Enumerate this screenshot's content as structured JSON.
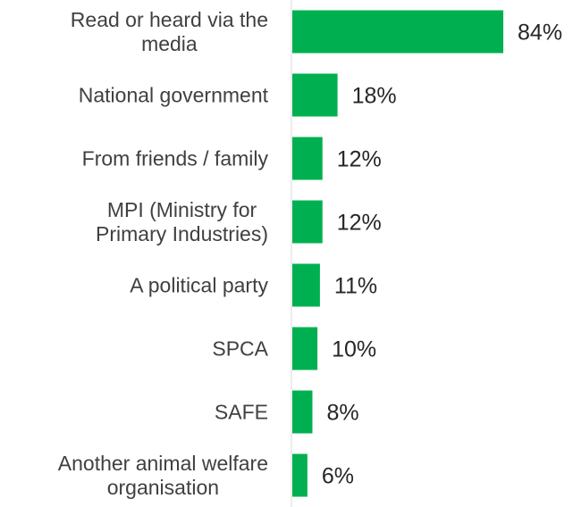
{
  "chart_data": {
    "type": "bar",
    "orientation": "horizontal",
    "title": "",
    "xlabel": "",
    "ylabel": "",
    "xlim": [
      0,
      100
    ],
    "grid": false,
    "legend": "none",
    "bar_color": "#00b050",
    "axis_color": "#d9d9d9",
    "categories": [
      [
        "Read or heard via the",
        "media"
      ],
      [
        "National government"
      ],
      [
        "From friends / family"
      ],
      [
        "MPI (Ministry for",
        "Primary Industries)"
      ],
      [
        "A political party"
      ],
      [
        "SPCA"
      ],
      [
        "SAFE"
      ],
      [
        "Another animal welfare",
        "organisation"
      ]
    ],
    "values": [
      84,
      18,
      12,
      12,
      11,
      10,
      8,
      6
    ],
    "value_labels": [
      "84%",
      "18%",
      "12%",
      "12%",
      "11%",
      "10%",
      "8%",
      "6%"
    ]
  }
}
